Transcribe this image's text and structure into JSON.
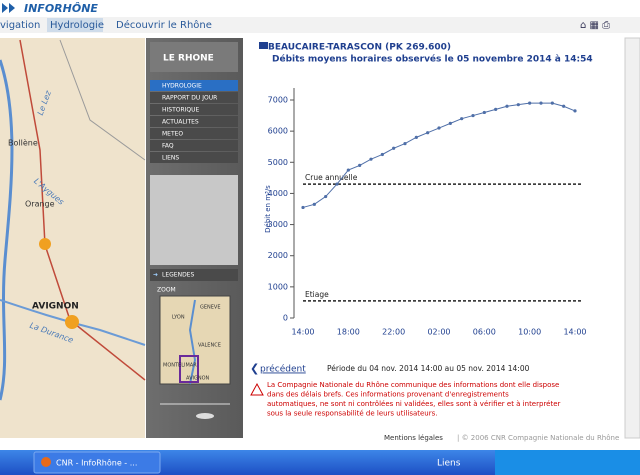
{
  "header": {
    "logo": "INFORHÔNE",
    "nav": [
      "vigation",
      "Hydrologie",
      "Découvrir le Rhône"
    ]
  },
  "map": {
    "labels": [
      "Bollène",
      "Le Lez",
      "L'Aygues",
      "Orange",
      "AVIGNON",
      "La Durance"
    ]
  },
  "sidebar": {
    "title": "LE RHONE",
    "menu": [
      "HYDROLOGIE",
      "RAPPORT DU JOUR",
      "HISTORIQUE",
      "ACTUALITES",
      "METEO",
      "FAQ",
      "LIENS"
    ],
    "legend": "LEGENDES",
    "zoom": "ZOOM",
    "minimap_labels": [
      "LYON",
      "GENEVE",
      "VALENCE",
      "MONTELIMAR",
      "AVIGNON"
    ]
  },
  "chart_data": {
    "type": "line",
    "title": "BEAUCAIRE-TARASCON (PK 269.600)",
    "subtitle": "Débits moyens horaires observés le 05 novembre 2014 à 14:54",
    "y_label": "Débit en m³/s",
    "categories": [
      "14:00",
      null,
      null,
      null,
      "18:00",
      null,
      null,
      null,
      "22:00",
      null,
      null,
      null,
      "02:00",
      null,
      null,
      null,
      "06:00",
      null,
      null,
      null,
      "10:00",
      null,
      null,
      null,
      "14:00"
    ],
    "series": [
      {
        "name": "Débit",
        "color": "#4f6fa8",
        "values": [
          3550,
          3650,
          3900,
          4300,
          4750,
          4900,
          5100,
          5250,
          5450,
          5600,
          5800,
          5950,
          6100,
          6250,
          6400,
          6500,
          6600,
          6700,
          6800,
          6850,
          6900,
          6900,
          6900,
          6800,
          6650
        ]
      }
    ],
    "ylim": [
      0,
      7000
    ],
    "yticks": [
      0,
      1000,
      2000,
      3000,
      4000,
      5000,
      6000,
      7000
    ],
    "reference_lines": [
      {
        "label": "Crue annuelle",
        "value": 4300
      },
      {
        "label": "Etiage",
        "value": 550
      }
    ]
  },
  "navigation": {
    "previous": "précédent",
    "period": "Période du 04 nov. 2014 14:00 au 05 nov. 2014 14:00"
  },
  "warning": [
    "La Compagnie Nationale du Rhône communique des informations dont elle dispose",
    "dans des délais brefs. Ces informations provenant d'enregistrements",
    "automatiques, ne sont ni contrôlées ni validées, elles sont à vérifier et à interpréter",
    "sous la seule responsabilité de leurs utilisateurs."
  ],
  "footer": {
    "legal": "Mentions légales",
    "copyright": "| © 2006 CNR Compagnie Nationale du Rhône"
  },
  "taskbar": {
    "window": "CNR - InfoRhône - ...",
    "links": "Liens"
  }
}
